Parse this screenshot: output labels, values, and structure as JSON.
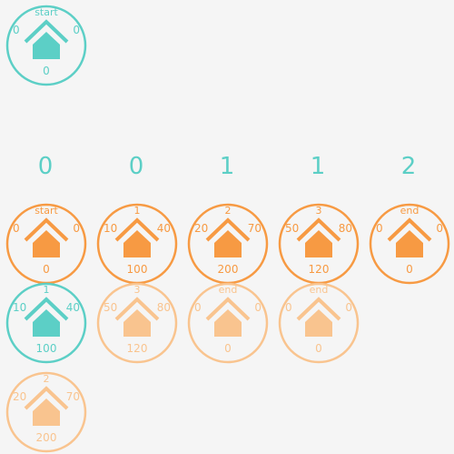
{
  "colors": {
    "teal": "#5ccfc6",
    "orange": "#f79a43",
    "faded": "#f9c48f",
    "background": "#f5f5f5"
  },
  "start_node": {
    "name": "start",
    "left": "0",
    "right": "0",
    "bottom": "0",
    "style": "teal",
    "icon": "house-icon"
  },
  "column_headers": [
    "0",
    "0",
    "1",
    "1",
    "2"
  ],
  "main_row": [
    {
      "name": "start",
      "left": "0",
      "right": "0",
      "bottom": "0",
      "style": "orange",
      "icon": "house-icon"
    },
    {
      "name": "1",
      "left": "10",
      "right": "40",
      "bottom": "100",
      "style": "orange",
      "icon": "house-icon"
    },
    {
      "name": "2",
      "left": "20",
      "right": "70",
      "bottom": "200",
      "style": "orange",
      "icon": "house-icon"
    },
    {
      "name": "3",
      "left": "50",
      "right": "80",
      "bottom": "120",
      "style": "orange",
      "icon": "house-icon"
    },
    {
      "name": "end",
      "left": "0",
      "right": "0",
      "bottom": "0",
      "style": "orange",
      "icon": "house-icon"
    }
  ],
  "second_row": [
    {
      "name": "1",
      "left": "10",
      "right": "40",
      "bottom": "100",
      "style": "teal",
      "icon": "house-icon"
    },
    {
      "name": "3",
      "left": "50",
      "right": "80",
      "bottom": "120",
      "style": "faded",
      "icon": "house-icon"
    },
    {
      "name": "end",
      "left": "0",
      "right": "0",
      "bottom": "0",
      "style": "faded",
      "icon": "house-icon"
    },
    {
      "name": "end",
      "left": "0",
      "right": "0",
      "bottom": "0",
      "style": "faded",
      "icon": "house-icon"
    }
  ],
  "third_row": [
    {
      "name": "2",
      "left": "20",
      "right": "70",
      "bottom": "200",
      "style": "faded",
      "icon": "house-icon"
    }
  ]
}
